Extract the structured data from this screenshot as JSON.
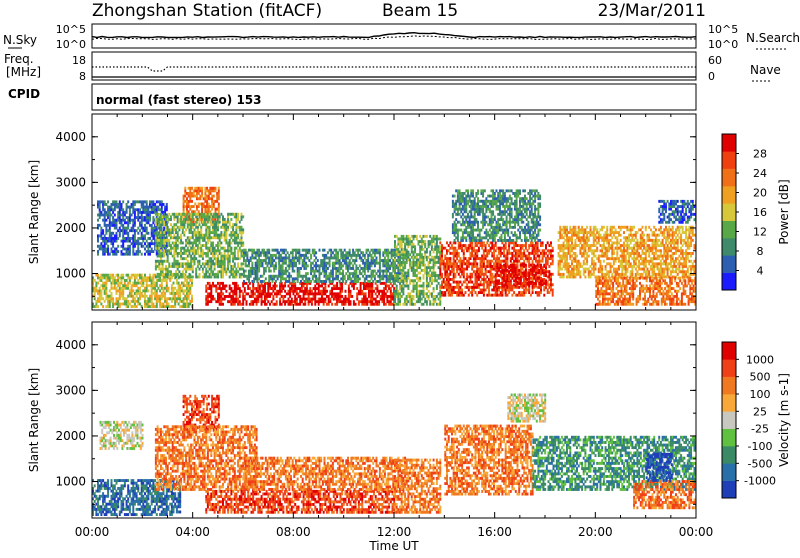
{
  "header": {
    "station": "Zhongshan Station (fitACF)",
    "beam": "Beam 15",
    "date": "23/Mar/2011"
  },
  "summary_panels": {
    "nsky_label": "N.Sky",
    "nsearch_label": "N.Search",
    "noise_ticks": [
      "10^5",
      "10^0"
    ],
    "freq_label_1": "Freq.",
    "freq_label_2": "[MHz]",
    "freq_ticks": [
      "18",
      "8"
    ],
    "nave_ticks": [
      "60",
      "0"
    ],
    "nave_label": "Nave",
    "cpid_label": "CPID",
    "cpid_text": "normal (fast stereo) 153"
  },
  "x_axis": {
    "label": "Time UT",
    "ticks": [
      "00:00",
      "04:00",
      "08:00",
      "12:00",
      "16:00",
      "20:00",
      "00:00"
    ],
    "range_hours": [
      0,
      24
    ]
  },
  "chart_data": [
    {
      "type": "heatmap",
      "name": "Power",
      "ylabel": "Slant Range [km]",
      "ylim": [
        200,
        4500
      ],
      "yticks": [
        "4000",
        "3000",
        "2000",
        "1000"
      ],
      "colorbar_label": "Power [dB]",
      "colorbar_ticks": [
        "28",
        "24",
        "20",
        "16",
        "12",
        "8",
        "4"
      ],
      "colors": [
        "#1b1bff",
        "#2c5fb0",
        "#3f8a6a",
        "#58a848",
        "#d6c83a",
        "#f0a020",
        "#f07018",
        "#f04010",
        "#e00000"
      ],
      "patches": [
        {
          "t0": 0.0,
          "t1": 4.0,
          "r0": 250,
          "r1": 950,
          "lvl": 4
        },
        {
          "t0": 0.2,
          "t1": 3.0,
          "r0": 1400,
          "r1": 2600,
          "lvl": 1
        },
        {
          "t0": 3.6,
          "t1": 5.0,
          "r0": 2100,
          "r1": 2900,
          "lvl": 6
        },
        {
          "t0": 2.5,
          "t1": 6.0,
          "r0": 900,
          "r1": 2300,
          "lvl": 3
        },
        {
          "t0": 4.5,
          "t1": 12.0,
          "r0": 300,
          "r1": 800,
          "lvl": 8
        },
        {
          "t0": 6.0,
          "t1": 12.5,
          "r0": 800,
          "r1": 1500,
          "lvl": 2
        },
        {
          "t0": 12.0,
          "t1": 13.8,
          "r0": 300,
          "r1": 1800,
          "lvl": 3
        },
        {
          "t0": 13.8,
          "t1": 18.3,
          "r0": 500,
          "r1": 1700,
          "lvl": 7
        },
        {
          "t0": 14.3,
          "t1": 17.8,
          "r0": 1700,
          "r1": 2800,
          "lvl": 2
        },
        {
          "t0": 16.0,
          "t1": 18.0,
          "r0": 700,
          "r1": 1200,
          "lvl": 8
        },
        {
          "t0": 18.5,
          "t1": 24.0,
          "r0": 900,
          "r1": 2000,
          "lvl": 5
        },
        {
          "t0": 20.0,
          "t1": 24.0,
          "r0": 300,
          "r1": 900,
          "lvl": 6
        },
        {
          "t0": 22.5,
          "t1": 24.0,
          "r0": 2100,
          "r1": 2600,
          "lvl": 1
        }
      ]
    },
    {
      "type": "heatmap",
      "name": "Velocity",
      "ylabel": "Slant Range [km]",
      "ylim": [
        200,
        4500
      ],
      "yticks": [
        "4000",
        "3000",
        "2000",
        "1000"
      ],
      "colorbar_label": "Velocity [m s-1]",
      "colorbar_ticks": [
        "1000",
        "500",
        "100",
        "25",
        "-25",
        "-100",
        "-500",
        "-1000"
      ],
      "colors": [
        "#1e3fb8",
        "#2a70a8",
        "#3b8a66",
        "#60c040",
        "#c8c8c0",
        "#f8a838",
        "#f07820",
        "#f04018",
        "#e00000"
      ],
      "patches": [
        {
          "t0": 0.0,
          "t1": 3.5,
          "r0": 250,
          "r1": 1000,
          "lvl": 1
        },
        {
          "t0": 0.3,
          "t1": 2.0,
          "r0": 1700,
          "r1": 2300,
          "lvl": 4
        },
        {
          "t0": 3.6,
          "t1": 5.0,
          "r0": 2100,
          "r1": 2900,
          "lvl": 7
        },
        {
          "t0": 2.5,
          "t1": 6.5,
          "r0": 800,
          "r1": 2200,
          "lvl": 6
        },
        {
          "t0": 4.5,
          "t1": 12.0,
          "r0": 300,
          "r1": 800,
          "lvl": 7
        },
        {
          "t0": 6.0,
          "t1": 12.5,
          "r0": 800,
          "r1": 1500,
          "lvl": 6
        },
        {
          "t0": 12.0,
          "t1": 13.8,
          "r0": 300,
          "r1": 1500,
          "lvl": 6
        },
        {
          "t0": 14.0,
          "t1": 17.5,
          "r0": 700,
          "r1": 2200,
          "lvl": 6
        },
        {
          "t0": 16.5,
          "t1": 18.0,
          "r0": 2300,
          "r1": 2900,
          "lvl": 4
        },
        {
          "t0": 17.5,
          "t1": 24.0,
          "r0": 800,
          "r1": 2000,
          "lvl": 2
        },
        {
          "t0": 21.5,
          "t1": 24.0,
          "r0": 400,
          "r1": 1000,
          "lvl": 6
        },
        {
          "t0": 22.0,
          "t1": 23.0,
          "r0": 1000,
          "r1": 1600,
          "lvl": 0
        }
      ]
    }
  ]
}
